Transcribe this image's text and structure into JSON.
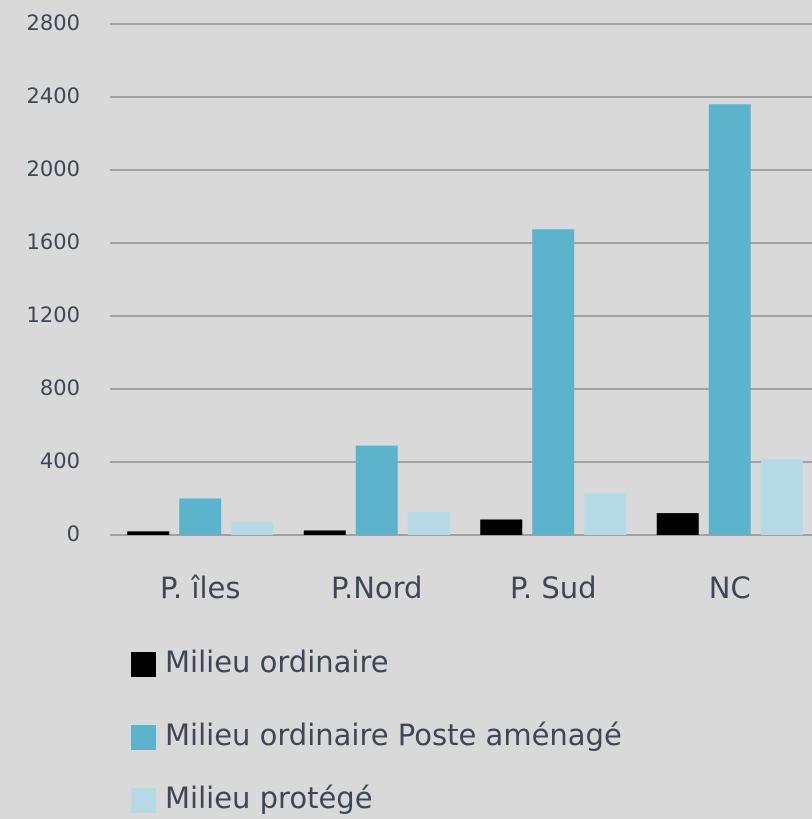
{
  "chart_data": {
    "type": "bar",
    "categories": [
      "P. îles",
      "P.Nord",
      "P. Sud",
      "NC"
    ],
    "series": [
      {
        "name": "Milieu ordinaire",
        "color": "#000000",
        "values": [
          20,
          25,
          85,
          120
        ]
      },
      {
        "name": "Milieu ordinaire Poste aménagé",
        "color": "#5bb3cc",
        "values": [
          200,
          490,
          1675,
          2360
        ]
      },
      {
        "name": "Milieu protégé",
        "color": "#b5dae6",
        "values": [
          70,
          125,
          230,
          415
        ]
      }
    ],
    "ylim": [
      0,
      2800
    ],
    "yticks": [
      0,
      400,
      800,
      1200,
      1600,
      2000,
      2400,
      2800
    ],
    "grid": true,
    "legend": "bottom"
  }
}
